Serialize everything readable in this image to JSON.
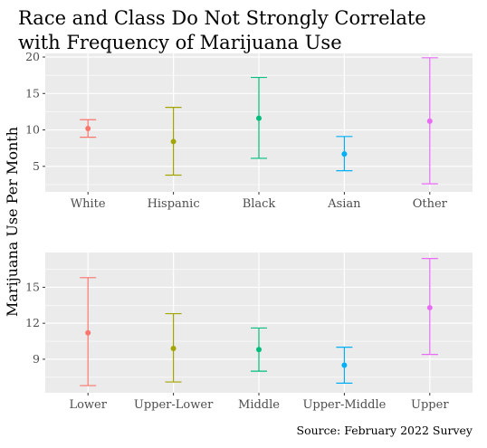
{
  "title_line1": "Race and Class Do Not Strongly Correlate",
  "title_line2": "with Frequency of Marijuana Use",
  "ylabel": "Marijuana Use Per Month",
  "caption": "Source: February 2022 Survey",
  "chart_data": [
    {
      "type": "errorbar",
      "categories": [
        "White",
        "Hispanic",
        "Black",
        "Asian",
        "Other"
      ],
      "mean": [
        10.2,
        8.4,
        11.6,
        6.7,
        11.2
      ],
      "lower": [
        9.0,
        3.8,
        6.1,
        4.4,
        2.6
      ],
      "upper": [
        11.4,
        13.1,
        17.2,
        9.1,
        19.9
      ],
      "colors": [
        "#F8766D",
        "#A3A500",
        "#00BF7D",
        "#00B0F6",
        "#E76BF3"
      ],
      "yticks": [
        5,
        10,
        15,
        20
      ],
      "ylim": [
        1.5,
        20.5
      ],
      "grid": true
    },
    {
      "type": "errorbar",
      "categories": [
        "Lower",
        "Upper-Lower",
        "Middle",
        "Upper-Middle",
        "Upper"
      ],
      "mean": [
        11.2,
        9.9,
        9.8,
        8.5,
        13.3
      ],
      "lower": [
        6.8,
        7.1,
        8.0,
        7.0,
        9.4
      ],
      "upper": [
        15.8,
        12.8,
        11.6,
        10.0,
        17.4
      ],
      "colors": [
        "#F8766D",
        "#A3A500",
        "#00BF7D",
        "#00B0F6",
        "#E76BF3"
      ],
      "yticks": [
        9,
        12,
        15
      ],
      "ylim": [
        6.2,
        17.9
      ],
      "grid": true
    }
  ]
}
